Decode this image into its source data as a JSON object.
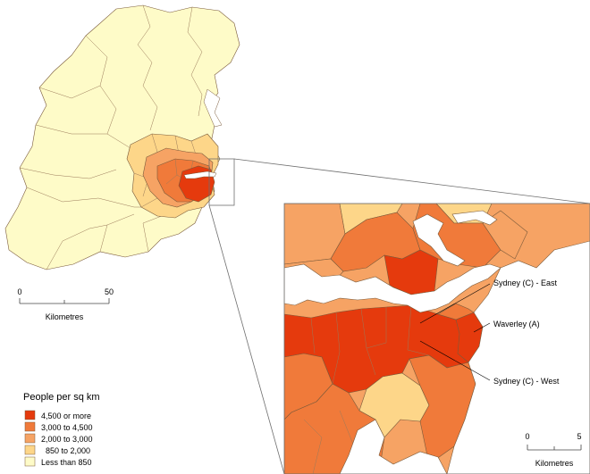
{
  "legend": {
    "title": "People per sq km",
    "items": [
      {
        "label": "4,500 or more",
        "color": "#e53a0d"
      },
      {
        "label": "3,000 to 4,500",
        "color": "#f07a3a"
      },
      {
        "label": "2,000 to 3,000",
        "color": "#f6a364"
      },
      {
        "label": "850 to 2,000",
        "color": "#fdd689"
      },
      {
        "label": "Less than 850",
        "color": "#fefbc8"
      }
    ]
  },
  "scale_main": {
    "start": "0",
    "end": "50",
    "unit": "Kilometres"
  },
  "scale_inset": {
    "start": "0",
    "end": "5",
    "unit": "Kilometres"
  },
  "callouts": [
    {
      "label": "Sydney (C) - East"
    },
    {
      "label": "Waverley (A)"
    },
    {
      "label": "Sydney (C) - West"
    }
  ],
  "colors": {
    "water": "#ffffff",
    "outline": "#7a5a3a",
    "border": "#6e6e6e"
  }
}
